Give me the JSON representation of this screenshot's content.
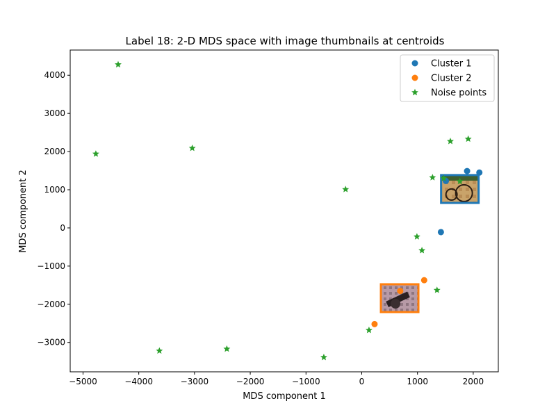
{
  "chart_data": {
    "type": "scatter",
    "title": "Label 18: 2-D MDS space with image thumbnails at centroids",
    "xlabel": "MDS component 1",
    "ylabel": "MDS component 2",
    "xlim": [
      -5230,
      2450
    ],
    "ylim": [
      -3770,
      4660
    ],
    "xticks": [
      -5000,
      -4000,
      -3000,
      -2000,
      -1000,
      0,
      1000,
      2000
    ],
    "xtick_labels": [
      "−5000",
      "−4000",
      "−3000",
      "−2000",
      "−1000",
      "0",
      "1000",
      "2000"
    ],
    "yticks": [
      -3000,
      -2000,
      -1000,
      0,
      1000,
      2000,
      3000,
      4000
    ],
    "ytick_labels": [
      "−3000",
      "−2000",
      "−1000",
      "0",
      "1000",
      "2000",
      "3000",
      "4000"
    ],
    "grid": false,
    "legend_position": "upper-right",
    "series": [
      {
        "name": "Cluster 1",
        "marker": "circle",
        "color": "#1f77b4",
        "points": [
          [
            1890,
            1490
          ],
          [
            2110,
            1450
          ],
          [
            1510,
            1230
          ],
          [
            1420,
            -110
          ]
        ]
      },
      {
        "name": "Cluster 2",
        "marker": "circle",
        "color": "#ff7f0e",
        "points": [
          [
            1120,
            -1370
          ],
          [
            690,
            -1650
          ],
          [
            230,
            -2520
          ]
        ]
      },
      {
        "name": "Noise points",
        "marker": "star",
        "color": "#2ca02c",
        "points": [
          [
            -4370,
            4280
          ],
          [
            -4770,
            1940
          ],
          [
            -3040,
            2090
          ],
          [
            -290,
            1010
          ],
          [
            1590,
            2270
          ],
          [
            1910,
            2330
          ],
          [
            1270,
            1320
          ],
          [
            1470,
            1300
          ],
          [
            1760,
            1220
          ],
          [
            990,
            -230
          ],
          [
            1080,
            -590
          ],
          [
            1350,
            -1630
          ],
          [
            130,
            -2680
          ],
          [
            -3630,
            -3220
          ],
          [
            -2420,
            -3170
          ],
          [
            -680,
            -3390
          ]
        ]
      }
    ],
    "thumbnails": [
      {
        "cluster": "Cluster 1",
        "border_color": "#1f77b4",
        "center": [
          1760,
          1020
        ],
        "description": "cannon wheel photo"
      },
      {
        "cluster": "Cluster 2",
        "border_color": "#ff7f0e",
        "center": [
          680,
          -1840
        ],
        "description": "cannon barrel photo"
      }
    ]
  }
}
